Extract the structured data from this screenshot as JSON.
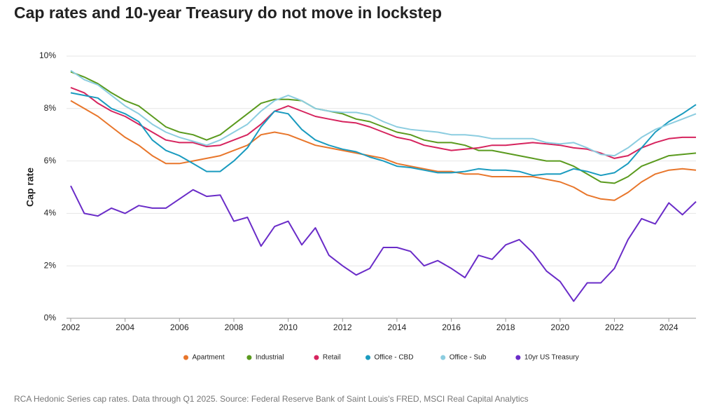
{
  "chart_data": {
    "type": "line",
    "title": "Cap rates and 10-year Treasury do not move in lockstep",
    "y_label": "Cap rate",
    "footnote": "RCA Hedonic Series cap rates. Data through Q1 2025. Source: Federal Reserve Bank of Saint Louis's FRED, MSCI Real Capital Analytics",
    "x": [
      2002,
      2002.5,
      2003,
      2003.5,
      2004,
      2004.5,
      2005,
      2005.5,
      2006,
      2006.5,
      2007,
      2007.5,
      2008,
      2008.5,
      2009,
      2009.5,
      2010,
      2010.5,
      2011,
      2011.5,
      2012,
      2012.5,
      2013,
      2013.5,
      2014,
      2014.5,
      2015,
      2015.5,
      2016,
      2016.5,
      2017,
      2017.5,
      2018,
      2018.5,
      2019,
      2019.5,
      2020,
      2020.5,
      2021,
      2021.5,
      2022,
      2022.5,
      2023,
      2023.5,
      2024,
      2024.5,
      2025
    ],
    "xlim": [
      2002,
      2025
    ],
    "xticks": [
      2002,
      2004,
      2006,
      2008,
      2010,
      2012,
      2014,
      2016,
      2018,
      2020,
      2022,
      2024
    ],
    "ylim": [
      0,
      10
    ],
    "yticks": [
      {
        "value": 0,
        "label": "0%"
      },
      {
        "value": 2,
        "label": "2%"
      },
      {
        "value": 4,
        "label": "4%"
      },
      {
        "value": 6,
        "label": "6%"
      },
      {
        "value": 8,
        "label": "8%"
      },
      {
        "value": 10,
        "label": "10%"
      }
    ],
    "grid": true,
    "legend": "bottom",
    "series": [
      {
        "name": "Apartment",
        "color": "#e8762b",
        "values": [
          8.3,
          8.0,
          7.7,
          7.3,
          6.9,
          6.6,
          6.2,
          5.9,
          5.9,
          6.0,
          6.1,
          6.2,
          6.4,
          6.6,
          7.0,
          7.1,
          7.0,
          6.8,
          6.6,
          6.5,
          6.4,
          6.3,
          6.2,
          6.1,
          5.9,
          5.8,
          5.7,
          5.6,
          5.6,
          5.5,
          5.5,
          5.4,
          5.4,
          5.4,
          5.4,
          5.3,
          5.2,
          5.0,
          4.7,
          4.55,
          4.5,
          4.8,
          5.2,
          5.5,
          5.65,
          5.7,
          5.65
        ]
      },
      {
        "name": "Industrial",
        "color": "#5a9a1e",
        "values": [
          9.4,
          9.2,
          8.95,
          8.6,
          8.3,
          8.1,
          7.7,
          7.3,
          7.1,
          7.0,
          6.8,
          7.0,
          7.4,
          7.8,
          8.2,
          8.35,
          8.35,
          8.3,
          8.0,
          7.9,
          7.8,
          7.6,
          7.5,
          7.3,
          7.1,
          7.0,
          6.8,
          6.7,
          6.7,
          6.6,
          6.4,
          6.4,
          6.3,
          6.2,
          6.1,
          6.0,
          6.0,
          5.8,
          5.5,
          5.2,
          5.15,
          5.4,
          5.8,
          6.0,
          6.2,
          6.25,
          6.3
        ]
      },
      {
        "name": "Retail",
        "color": "#d6245e",
        "values": [
          8.8,
          8.6,
          8.2,
          7.9,
          7.7,
          7.4,
          7.1,
          6.8,
          6.7,
          6.7,
          6.55,
          6.6,
          6.8,
          7.0,
          7.4,
          7.9,
          8.1,
          7.9,
          7.7,
          7.6,
          7.5,
          7.45,
          7.3,
          7.1,
          6.9,
          6.8,
          6.6,
          6.5,
          6.4,
          6.45,
          6.5,
          6.6,
          6.6,
          6.65,
          6.7,
          6.65,
          6.6,
          6.5,
          6.45,
          6.3,
          6.1,
          6.2,
          6.5,
          6.7,
          6.85,
          6.9,
          6.9
        ]
      },
      {
        "name": "Office - CBD",
        "color": "#1a9bbf",
        "values": [
          8.6,
          8.5,
          8.4,
          8.0,
          7.8,
          7.5,
          6.8,
          6.4,
          6.2,
          5.9,
          5.6,
          5.6,
          6.0,
          6.5,
          7.3,
          7.9,
          7.8,
          7.2,
          6.8,
          6.6,
          6.45,
          6.35,
          6.15,
          6.0,
          5.8,
          5.75,
          5.65,
          5.55,
          5.55,
          5.6,
          5.7,
          5.65,
          5.65,
          5.6,
          5.45,
          5.5,
          5.5,
          5.7,
          5.6,
          5.45,
          5.55,
          5.9,
          6.5,
          7.1,
          7.5,
          7.8,
          8.15
        ]
      },
      {
        "name": "Office - Sub",
        "color": "#8ccde0",
        "values": [
          9.45,
          9.1,
          8.9,
          8.5,
          8.1,
          7.8,
          7.4,
          7.1,
          6.9,
          6.75,
          6.6,
          6.8,
          7.1,
          7.4,
          7.9,
          8.3,
          8.5,
          8.3,
          8.0,
          7.9,
          7.85,
          7.85,
          7.75,
          7.5,
          7.3,
          7.2,
          7.15,
          7.1,
          7.0,
          7.0,
          6.95,
          6.85,
          6.85,
          6.85,
          6.85,
          6.7,
          6.65,
          6.7,
          6.5,
          6.25,
          6.2,
          6.5,
          6.9,
          7.2,
          7.4,
          7.6,
          7.8
        ]
      },
      {
        "name": "10yr US Treasury",
        "color": "#6a2cc8",
        "values": [
          5.05,
          4.0,
          3.9,
          4.2,
          4.0,
          4.3,
          4.2,
          4.2,
          4.55,
          4.9,
          4.65,
          4.7,
          3.7,
          3.85,
          2.75,
          3.5,
          3.7,
          2.8,
          3.45,
          2.4,
          2.0,
          1.65,
          1.9,
          2.7,
          2.7,
          2.55,
          2.0,
          2.2,
          1.9,
          1.55,
          2.4,
          2.25,
          2.8,
          3.0,
          2.5,
          1.8,
          1.4,
          0.65,
          1.35,
          1.35,
          1.9,
          3.0,
          3.8,
          3.6,
          4.4,
          3.95,
          4.45
        ]
      }
    ]
  }
}
